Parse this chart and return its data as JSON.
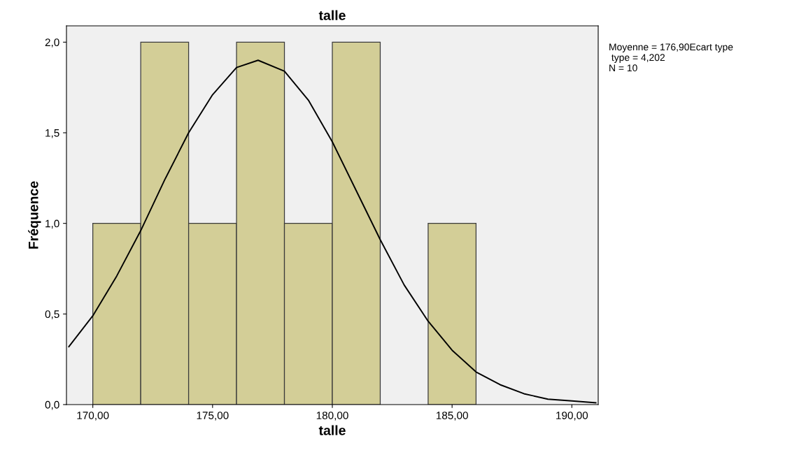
{
  "chart_data": {
    "type": "histogram",
    "title": "talle",
    "xlabel": "talle",
    "ylabel": "Fréquence",
    "bins": [
      170,
      172,
      174,
      176,
      178,
      180,
      182,
      184,
      186
    ],
    "values": [
      1,
      2,
      1,
      2,
      1,
      2,
      0,
      1
    ],
    "color": "#d3ce97",
    "series": [
      {
        "type": "line",
        "color": "#000000",
        "x": [
          169,
          170,
          171,
          172,
          173,
          174,
          175,
          176,
          176.9,
          178,
          179,
          180,
          181,
          182,
          183,
          184,
          185,
          186,
          187,
          188,
          189,
          190,
          191
        ],
        "values": [
          0.32,
          0.49,
          0.71,
          0.96,
          1.24,
          1.5,
          1.71,
          1.86,
          1.9,
          1.84,
          1.68,
          1.45,
          1.18,
          0.91,
          0.66,
          0.46,
          0.3,
          0.18,
          0.11,
          0.06,
          0.03,
          0.02,
          0.01
        ]
      }
    ],
    "xlim": [
      168.9,
      191.1
    ],
    "ylim": [
      0,
      2.09
    ],
    "xticks": [
      {
        "value": 170,
        "label": "170,00"
      },
      {
        "value": 175,
        "label": "175,00"
      },
      {
        "value": 180,
        "label": "180,00"
      },
      {
        "value": 185,
        "label": "185,00"
      },
      {
        "value": 190,
        "label": "190,00"
      }
    ],
    "yticks": [
      {
        "value": 0,
        "label": "0,0"
      },
      {
        "value": 0.5,
        "label": "0,5"
      },
      {
        "value": 1,
        "label": "1,0"
      },
      {
        "value": 1.5,
        "label": "1,5"
      },
      {
        "value": 2,
        "label": "2,0"
      }
    ],
    "grid": false,
    "annotations": [
      "Moyenne = 176,90Ecart type\n type = 4,202\nN = 10"
    ]
  }
}
